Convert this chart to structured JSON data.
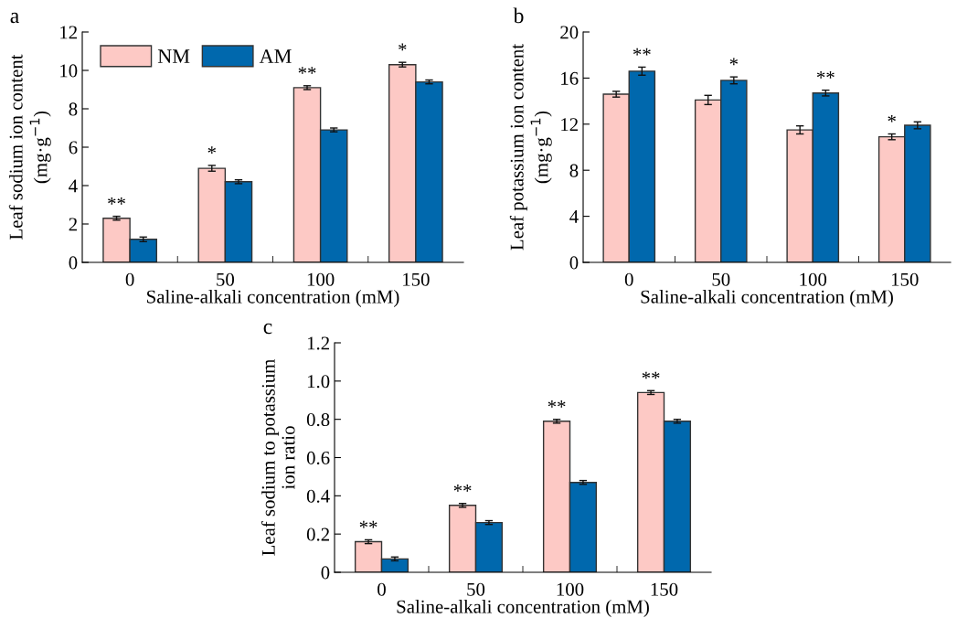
{
  "chart_data": [
    {
      "type": "bar",
      "title": "a",
      "xlabel": "Saline-alkali concentration (mM)",
      "ylabel": "Leaf sodium ion content\n(mg·g$^{−1}$)",
      "categories": [
        "0",
        "50",
        "100",
        "150"
      ],
      "series": [
        {
          "name": "NM",
          "color": "#fdc9c5",
          "values": [
            2.3,
            4.9,
            9.1,
            10.3
          ],
          "errors": [
            0.1,
            0.15,
            0.1,
            0.12
          ]
        },
        {
          "name": "AM",
          "color": "#0068ad",
          "values": [
            1.2,
            4.2,
            6.9,
            9.4
          ],
          "errors": [
            0.12,
            0.1,
            0.1,
            0.1
          ]
        }
      ],
      "ylim": [
        0,
        12
      ],
      "yticks": [
        0,
        2,
        4,
        6,
        8,
        10,
        12
      ],
      "grid": false,
      "legend": "top left",
      "annotations": [
        {
          "text": "**",
          "x": "0",
          "y": 2.3
        },
        {
          "text": "*",
          "x": "50",
          "y": 4.9
        },
        {
          "text": "**",
          "x": "100",
          "y": 9.1
        },
        {
          "text": "*",
          "x": "150",
          "y": 10.3
        }
      ]
    },
    {
      "type": "bar",
      "title": "b",
      "xlabel": "Saline-alkali concentration (mM)",
      "ylabel": "Leaf potassium ion content\n(mg·g$^{−1}$)",
      "categories": [
        "0",
        "50",
        "100",
        "150"
      ],
      "series": [
        {
          "color": "#fdc9c5",
          "values": [
            14.6,
            14.1,
            11.5,
            10.9
          ],
          "errors": [
            0.25,
            0.4,
            0.35,
            0.25
          ]
        },
        {
          "color": "#0068ad",
          "values": [
            16.6,
            15.8,
            14.7,
            11.9
          ],
          "errors": [
            0.35,
            0.3,
            0.25,
            0.3
          ]
        }
      ],
      "ylim": [
        0,
        20
      ],
      "yticks": [
        0,
        4,
        8,
        12,
        16,
        20
      ],
      "grid": false,
      "annotations": [
        {
          "text": "**",
          "x": "0",
          "y": 16.6
        },
        {
          "text": "*",
          "x": "50",
          "y": 15.8
        },
        {
          "text": "**",
          "x": "100",
          "y": 14.7
        },
        {
          "text": "*",
          "x": "150",
          "y": 10.9
        }
      ]
    },
    {
      "type": "bar",
      "title": "c",
      "xlabel": "Saline-alkali concentration (mM)",
      "ylabel": "Leaf sodium to potassium\nion ratio",
      "categories": [
        "0",
        "50",
        "100",
        "150"
      ],
      "series": [
        {
          "color": "#fdc9c5",
          "values": [
            0.16,
            0.35,
            0.79,
            0.94
          ],
          "errors": [
            0.01,
            0.01,
            0.01,
            0.01
          ]
        },
        {
          "color": "#0068ad",
          "values": [
            0.07,
            0.26,
            0.47,
            0.79
          ],
          "errors": [
            0.01,
            0.01,
            0.01,
            0.01
          ]
        }
      ],
      "ylim": [
        0,
        1.2
      ],
      "yticks": [
        0,
        {
          "value": 0.2,
          "label": "0.2"
        },
        {
          "value": 0.4,
          "label": "0.4"
        },
        {
          "value": 0.6,
          "label": "0.6"
        },
        {
          "value": 0.8,
          "label": "0.8"
        },
        {
          "value": 1.0,
          "label": "1.0"
        },
        {
          "value": 1.2,
          "label": "1.2"
        }
      ],
      "grid": false,
      "annotations": [
        {
          "text": "**",
          "x": "0",
          "y": 0.16
        },
        {
          "text": "**",
          "x": "50",
          "y": 0.35
        },
        {
          "text": "**",
          "x": "100",
          "y": 0.79
        },
        {
          "text": "**",
          "x": "150",
          "y": 0.94
        }
      ]
    }
  ]
}
